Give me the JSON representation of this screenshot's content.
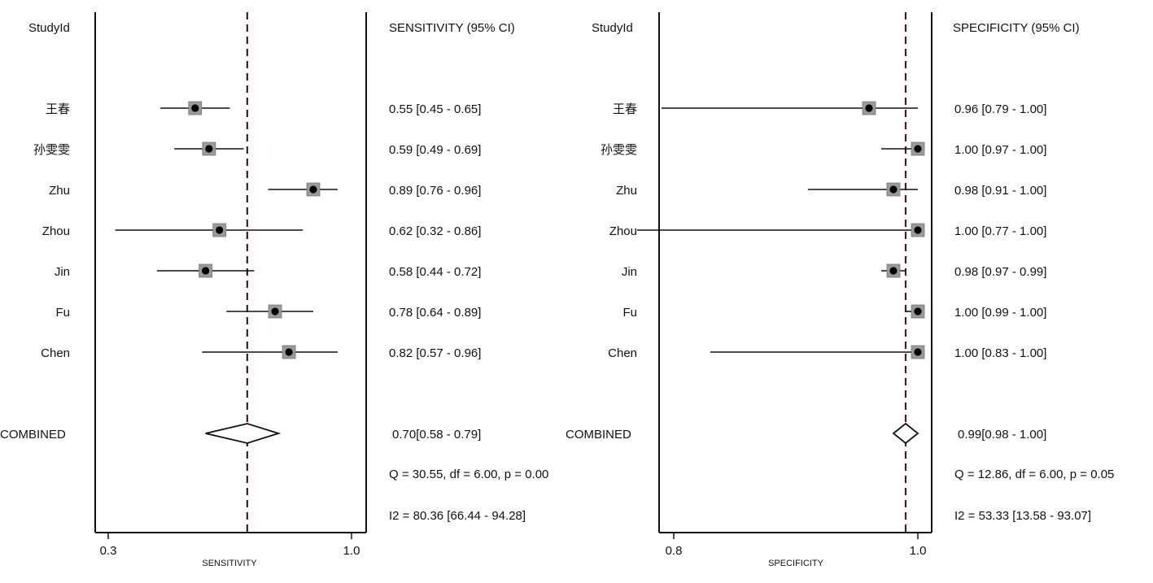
{
  "chart_data": [
    {
      "type": "forest",
      "study_header": "StudyId",
      "value_header": "SENSITIVITY (95% CI)",
      "xlabel": "SENSITIVITY",
      "xlim": [
        0.3,
        1.0
      ],
      "xticks": [
        0.3,
        1.0
      ],
      "xtick_labels": [
        "0.3",
        "1.0"
      ],
      "reference_line": 0.7,
      "studies": [
        {
          "name": "王春",
          "estimate": 0.55,
          "lower": 0.45,
          "upper": 0.65,
          "label": "0.55 [0.45 - 0.65]"
        },
        {
          "name": "孙雯雯",
          "estimate": 0.59,
          "lower": 0.49,
          "upper": 0.69,
          "label": "0.59 [0.49 - 0.69]"
        },
        {
          "name": "Zhu",
          "estimate": 0.89,
          "lower": 0.76,
          "upper": 0.96,
          "label": "0.89 [0.76 - 0.96]"
        },
        {
          "name": "Zhou",
          "estimate": 0.62,
          "lower": 0.32,
          "upper": 0.86,
          "label": "0.62 [0.32 - 0.86]"
        },
        {
          "name": "Jin",
          "estimate": 0.58,
          "lower": 0.44,
          "upper": 0.72,
          "label": "0.58 [0.44 - 0.72]"
        },
        {
          "name": "Fu",
          "estimate": 0.78,
          "lower": 0.64,
          "upper": 0.89,
          "label": "0.78 [0.64 - 0.89]"
        },
        {
          "name": "Chen",
          "estimate": 0.82,
          "lower": 0.57,
          "upper": 0.96,
          "label": "0.82 [0.57 - 0.96]"
        }
      ],
      "combined": {
        "name": "COMBINED",
        "estimate": 0.7,
        "lower": 0.58,
        "upper": 0.79,
        "label": "0.70[0.58 - 0.79]"
      },
      "heterogeneity": [
        "Q = 30.55, df = 6.00, p =  0.00",
        "I2 = 80.36 [66.44 - 94.28]"
      ]
    },
    {
      "type": "forest",
      "study_header": "StudyId",
      "value_header": "SPECIFICITY (95% CI)",
      "xlabel": "SPECIFICITY",
      "xlim": [
        0.8,
        1.0
      ],
      "xticks": [
        0.8,
        1.0
      ],
      "xtick_labels": [
        "0.8",
        "1.0"
      ],
      "reference_line": 0.99,
      "studies": [
        {
          "name": "王春",
          "estimate": 0.96,
          "lower": 0.79,
          "upper": 1.0,
          "label": "0.96 [0.79 - 1.00]"
        },
        {
          "name": "孙雯雯",
          "estimate": 1.0,
          "lower": 0.97,
          "upper": 1.0,
          "label": "1.00 [0.97 - 1.00]"
        },
        {
          "name": "Zhu",
          "estimate": 0.98,
          "lower": 0.91,
          "upper": 1.0,
          "label": "0.98 [0.91 - 1.00]"
        },
        {
          "name": "Zhou",
          "estimate": 1.0,
          "lower": 0.77,
          "upper": 1.0,
          "label": "1.00 [0.77 - 1.00]"
        },
        {
          "name": "Jin",
          "estimate": 0.98,
          "lower": 0.97,
          "upper": 0.99,
          "label": "0.98 [0.97 - 0.99]"
        },
        {
          "name": "Fu",
          "estimate": 1.0,
          "lower": 0.99,
          "upper": 1.0,
          "label": "1.00 [0.99 - 1.00]"
        },
        {
          "name": "Chen",
          "estimate": 1.0,
          "lower": 0.83,
          "upper": 1.0,
          "label": "1.00 [0.83 - 1.00]"
        }
      ],
      "combined": {
        "name": "COMBINED",
        "estimate": 0.99,
        "lower": 0.98,
        "upper": 1.0,
        "label": "0.99[0.98 - 1.00]"
      },
      "heterogeneity": [
        "Q = 12.86, df = 6.00, p =  0.05",
        "I2 = 53.33 [13.58 - 93.07]"
      ]
    }
  ],
  "colors": {
    "ink": "#111111",
    "reference_line": "#4a1c1c",
    "marker_box": "#9a9a9a",
    "marker_dot": "#000000"
  }
}
